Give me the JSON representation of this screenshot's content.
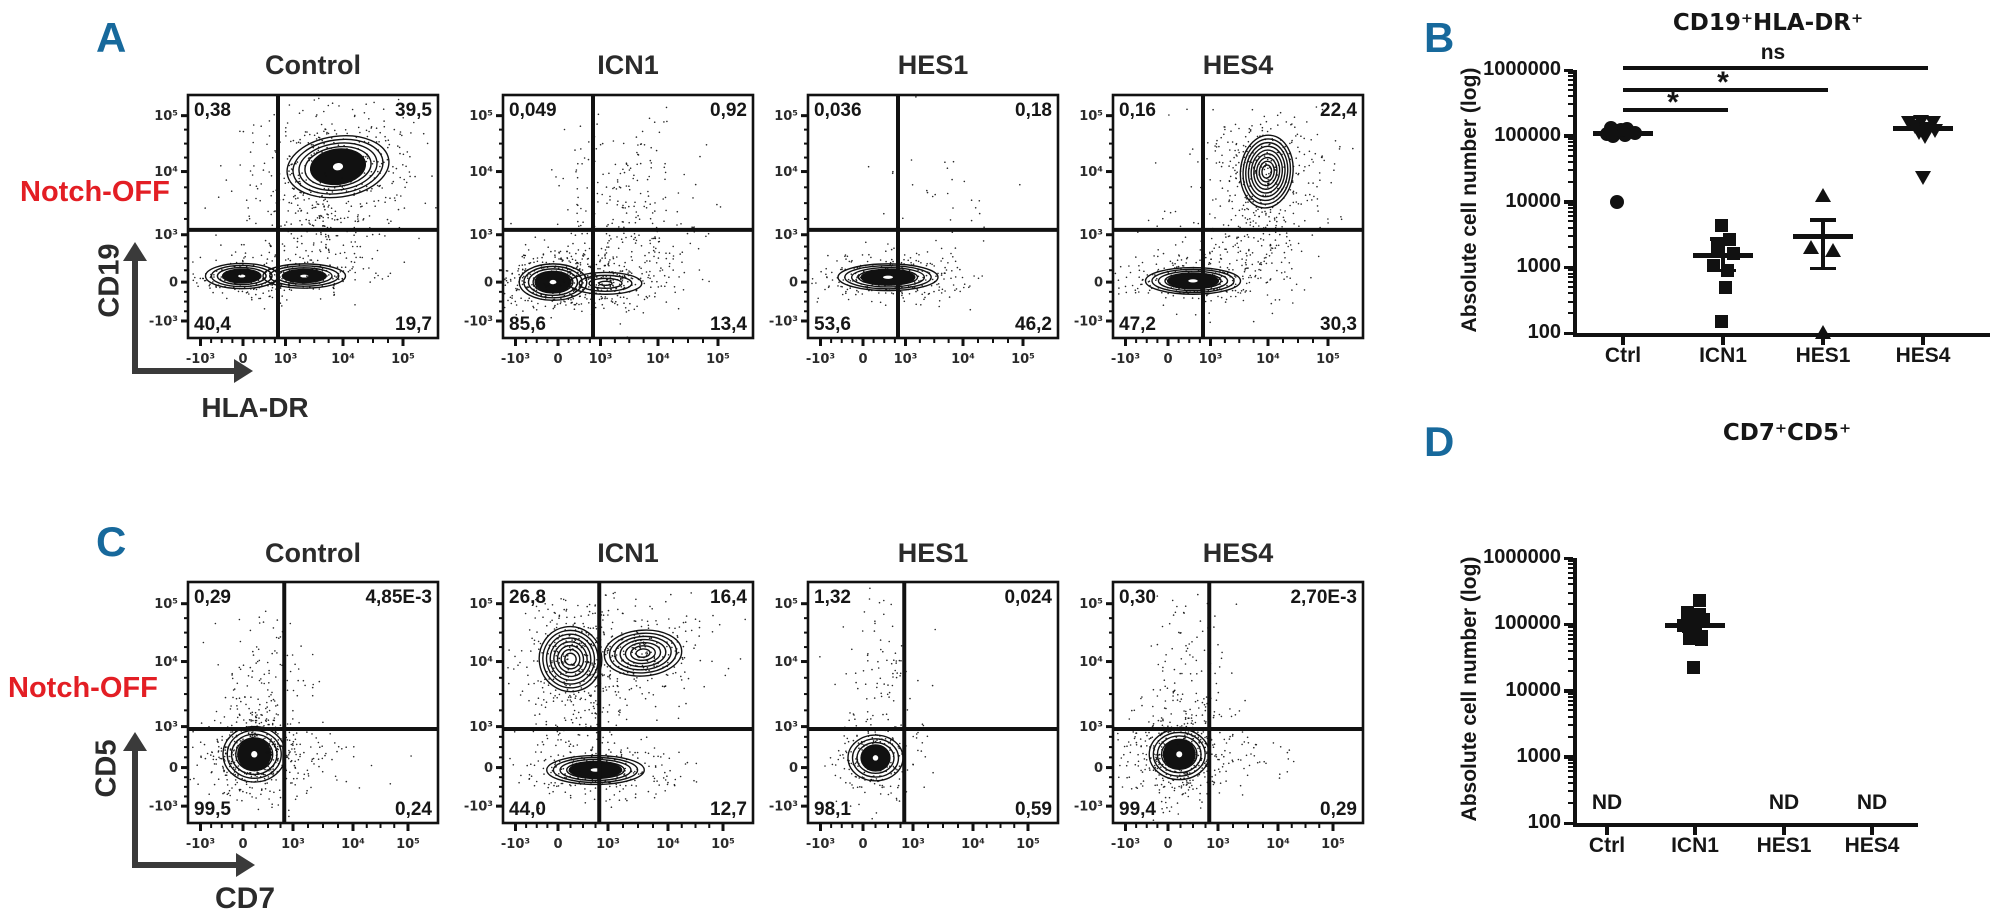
{
  "colors": {
    "panel_label": "#17699c",
    "notch": "#e31e24",
    "ink": "#111111"
  },
  "panels": {
    "a": {
      "label": "A",
      "notch": "Notch-OFF",
      "y_axis": "CD19",
      "x_axis": "HLA-DR"
    },
    "b": {
      "label": "B"
    },
    "c": {
      "label": "C",
      "notch": "Notch-OFF",
      "y_axis": "CD5",
      "x_axis": "CD7"
    },
    "d": {
      "label": "D"
    }
  },
  "chart_data": [
    {
      "type": "heatmap",
      "subtype": "flow-contour-grid",
      "panel": "A",
      "condition": "Notch-OFF",
      "xlabel": "HLA-DR",
      "ylabel": "CD19",
      "x_ticks": [
        "-10³",
        "0",
        "10³",
        "10⁴",
        "10⁵"
      ],
      "y_ticks": [
        "10⁵",
        "10⁴",
        "10³",
        "0",
        "-10³"
      ],
      "gate_x": 0.36,
      "gate_y": 0.555,
      "plots": [
        {
          "title": "Control",
          "quadrants": {
            "tl": "0,38",
            "tr": "39,5",
            "bl": "40,4",
            "br": "19,7"
          },
          "populations": [
            {
              "cx": 0.6,
              "cy": 0.295,
              "rx": 0.205,
              "ry": 0.125,
              "rot": -8,
              "levels": 8,
              "style": "dense",
              "scatter": [
                340,
                0.17,
                0.13
              ]
            },
            {
              "cx": 0.215,
              "cy": 0.745,
              "rx": 0.145,
              "ry": 0.052,
              "rot": 0,
              "levels": 6,
              "style": "dense",
              "scatter": [
                150,
                0.11,
                0.05
              ]
            },
            {
              "cx": 0.465,
              "cy": 0.745,
              "rx": 0.165,
              "ry": 0.05,
              "rot": 0,
              "levels": 6,
              "style": "dense",
              "scatter": [
                160,
                0.13,
                0.05
              ]
            },
            {
              "cx": 0.52,
              "cy": 0.52,
              "style": "speckle",
              "scatter": [
                220,
                0.16,
                0.14
              ]
            }
          ]
        },
        {
          "title": "ICN1",
          "quadrants": {
            "tl": "0,049",
            "tr": "0,92",
            "bl": "85,6",
            "br": "13,4"
          },
          "populations": [
            {
              "cx": 0.2,
              "cy": 0.77,
              "rx": 0.135,
              "ry": 0.075,
              "rot": 0,
              "levels": 7,
              "style": "dense",
              "scatter": [
                320,
                0.12,
                0.07
              ]
            },
            {
              "cx": 0.41,
              "cy": 0.775,
              "rx": 0.145,
              "ry": 0.045,
              "rot": 0,
              "levels": 4,
              "style": "rings",
              "scatter": [
                240,
                0.16,
                0.06
              ]
            },
            {
              "cx": 0.5,
              "cy": 0.38,
              "style": "speckle",
              "scatter": [
                150,
                0.13,
                0.16
              ]
            },
            {
              "cx": 0.55,
              "cy": 0.62,
              "style": "speckle",
              "scatter": [
                120,
                0.16,
                0.1
              ]
            }
          ]
        },
        {
          "title": "HES1",
          "quadrants": {
            "tl": "0,036",
            "tr": "0,18",
            "bl": "53,6",
            "br": "46,2"
          },
          "populations": [
            {
              "cx": 0.32,
              "cy": 0.75,
              "rx": 0.2,
              "ry": 0.055,
              "rot": 0,
              "levels": 7,
              "style": "dense",
              "scatter": [
                300,
                0.15,
                0.05
              ]
            },
            {
              "cx": 0.5,
              "cy": 0.48,
              "style": "speckle",
              "scatter": [
                40,
                0.14,
                0.16
              ]
            }
          ]
        },
        {
          "title": "HES4",
          "quadrants": {
            "tl": "0,16",
            "tr": "22,4",
            "bl": "47,2",
            "br": "30,3"
          },
          "populations": [
            {
              "cx": 0.615,
              "cy": 0.315,
              "rx": 0.105,
              "ry": 0.15,
              "rot": 6,
              "levels": 9,
              "style": "rings",
              "scatter": [
                300,
                0.13,
                0.14
              ]
            },
            {
              "cx": 0.32,
              "cy": 0.765,
              "rx": 0.19,
              "ry": 0.055,
              "rot": 0,
              "levels": 7,
              "style": "dense",
              "scatter": [
                240,
                0.15,
                0.05
              ]
            },
            {
              "cx": 0.6,
              "cy": 0.58,
              "style": "speckle",
              "scatter": [
                130,
                0.07,
                0.13
              ]
            },
            {
              "cx": 0.42,
              "cy": 0.6,
              "style": "speckle",
              "scatter": [
                80,
                0.18,
                0.1
              ]
            }
          ]
        }
      ]
    },
    {
      "type": "scatter",
      "panel": "B",
      "title": "CD19⁺HLA-DR⁺",
      "ylabel": "Absolute cell number (log)",
      "yscale": "log",
      "ylim": [
        100,
        1000000
      ],
      "yticks": [
        100,
        1000,
        10000,
        100000,
        1000000
      ],
      "categories": [
        "Ctrl",
        "ICN1",
        "HES1",
        "HES4"
      ],
      "groups": [
        {
          "name": "Ctrl",
          "marker": "circle",
          "mean": 110000,
          "points": [
            {
              "v": 108000,
              "dx": -16
            },
            {
              "v": 118000,
              "dx": -6
            },
            {
              "v": 126000,
              "dx": 4
            },
            {
              "v": 112000,
              "dx": 12
            },
            {
              "v": 98000,
              "dx": -10
            },
            {
              "v": 104000,
              "dx": 2
            },
            {
              "v": 122000,
              "dx": -2
            },
            {
              "v": 130000,
              "dx": -12
            },
            {
              "v": 10000,
              "dx": -6
            }
          ]
        },
        {
          "name": "ICN1",
          "marker": "square",
          "mean": 1500,
          "err_lo": 900,
          "err_hi": 2700,
          "points": [
            {
              "v": 4300,
              "dx": -2
            },
            {
              "v": 2600,
              "dx": 6
            },
            {
              "v": 2100,
              "dx": -6
            },
            {
              "v": 1600,
              "dx": 10
            },
            {
              "v": 1050,
              "dx": -10
            },
            {
              "v": 900,
              "dx": 4
            },
            {
              "v": 500,
              "dx": 2
            },
            {
              "v": 150,
              "dx": -2
            }
          ]
        },
        {
          "name": "HES1",
          "marker": "triangle-up",
          "mean": 2900,
          "err_lo": 950,
          "err_hi": 5200,
          "points": [
            {
              "v": 12500,
              "dx": 0
            },
            {
              "v": 2000,
              "dx": -12
            },
            {
              "v": 1800,
              "dx": 10
            },
            {
              "v": 105,
              "dx": 0
            }
          ]
        },
        {
          "name": "HES4",
          "marker": "triangle-down",
          "mean": 128000,
          "points": [
            {
              "v": 155000,
              "dx": -14
            },
            {
              "v": 162000,
              "dx": -2
            },
            {
              "v": 158000,
              "dx": 10
            },
            {
              "v": 135000,
              "dx": -8
            },
            {
              "v": 125000,
              "dx": 4
            },
            {
              "v": 112000,
              "dx": -4
            },
            {
              "v": 118000,
              "dx": 12
            },
            {
              "v": 95000,
              "dx": 2
            },
            {
              "v": 23000,
              "dx": 0
            }
          ]
        }
      ],
      "sig_bars": [
        {
          "label": "ns",
          "from": "Ctrl",
          "to": "HES4"
        },
        {
          "label": "*",
          "from": "Ctrl",
          "to": "HES1"
        },
        {
          "label": "*",
          "from": "Ctrl",
          "to": "ICN1"
        }
      ]
    },
    {
      "type": "heatmap",
      "subtype": "flow-contour-grid",
      "panel": "C",
      "condition": "Notch-OFF",
      "xlabel": "CD7",
      "ylabel": "CD5",
      "x_ticks": [
        "-10³",
        "0",
        "10³",
        "10⁴",
        "10⁵"
      ],
      "y_ticks": [
        "10⁵",
        "10⁴",
        "10³",
        "0",
        "-10³"
      ],
      "gate_x": 0.385,
      "gate_y": 0.61,
      "plots": [
        {
          "title": "Control",
          "quadrants": {
            "tl": "0,29",
            "tr": "4,85E-3",
            "bl": "99,5",
            "br": "0,24"
          },
          "populations": [
            {
              "cx": 0.265,
              "cy": 0.715,
              "rx": 0.125,
              "ry": 0.115,
              "rot": 0,
              "levels": 7,
              "style": "dense",
              "scatter": [
                520,
                0.1,
                0.095
              ]
            },
            {
              "cx": 0.3,
              "cy": 0.38,
              "style": "speckle",
              "scatter": [
                110,
                0.09,
                0.17
              ]
            },
            {
              "cx": 0.55,
              "cy": 0.72,
              "style": "speckle",
              "scatter": [
                40,
                0.12,
                0.06
              ]
            }
          ]
        },
        {
          "title": "ICN1",
          "quadrants": {
            "tl": "26,8",
            "tr": "16,4",
            "bl": "44,0",
            "br": "12,7"
          },
          "populations": [
            {
              "cx": 0.27,
              "cy": 0.32,
              "rx": 0.125,
              "ry": 0.135,
              "rot": -10,
              "levels": 8,
              "style": "rings",
              "scatter": [
                260,
                0.12,
                0.13
              ]
            },
            {
              "cx": 0.56,
              "cy": 0.295,
              "rx": 0.155,
              "ry": 0.095,
              "rot": -4,
              "levels": 7,
              "style": "rings",
              "scatter": [
                260,
                0.15,
                0.1
              ]
            },
            {
              "cx": 0.37,
              "cy": 0.78,
              "rx": 0.195,
              "ry": 0.06,
              "rot": 0,
              "levels": 7,
              "style": "dense",
              "scatter": [
                260,
                0.16,
                0.06
              ]
            },
            {
              "cx": 0.3,
              "cy": 0.55,
              "style": "speckle",
              "scatter": [
                140,
                0.1,
                0.14
              ]
            }
          ]
        },
        {
          "title": "HES1",
          "quadrants": {
            "tl": "1,32",
            "tr": "0,024",
            "bl": "98,1",
            "br": "0,59"
          },
          "populations": [
            {
              "cx": 0.27,
              "cy": 0.73,
              "rx": 0.11,
              "ry": 0.095,
              "rot": 0,
              "levels": 6,
              "style": "dense",
              "scatter": [
                240,
                0.085,
                0.08
              ]
            },
            {
              "cx": 0.3,
              "cy": 0.4,
              "style": "speckle",
              "scatter": [
                90,
                0.08,
                0.17
              ]
            }
          ]
        },
        {
          "title": "HES4",
          "quadrants": {
            "tl": "0,30",
            "tr": "2,70E-3",
            "bl": "99,4",
            "br": "0,29"
          },
          "populations": [
            {
              "cx": 0.265,
              "cy": 0.715,
              "rx": 0.12,
              "ry": 0.105,
              "rot": 0,
              "levels": 7,
              "style": "dense",
              "scatter": [
                480,
                0.1,
                0.095
              ]
            },
            {
              "cx": 0.3,
              "cy": 0.38,
              "style": "speckle",
              "scatter": [
                100,
                0.09,
                0.16
              ]
            },
            {
              "cx": 0.55,
              "cy": 0.73,
              "style": "speckle",
              "scatter": [
                35,
                0.1,
                0.05
              ]
            }
          ]
        }
      ]
    },
    {
      "type": "scatter",
      "panel": "D",
      "title": "CD7⁺CD5⁺",
      "ylabel": "Absolute cell number (log)",
      "yscale": "log",
      "ylim": [
        100,
        1000000
      ],
      "yticks": [
        100,
        1000,
        10000,
        100000,
        1000000
      ],
      "categories": [
        "Ctrl",
        "ICN1",
        "HES1",
        "HES4"
      ],
      "nd_label": "ND",
      "groups": [
        {
          "name": "Ctrl",
          "nd": true
        },
        {
          "name": "ICN1",
          "marker": "square",
          "mean": 97000,
          "err_lo": 78000,
          "err_hi": 120000,
          "points": [
            {
              "v": 230000,
              "dx": 4
            },
            {
              "v": 150000,
              "dx": -8
            },
            {
              "v": 140000,
              "dx": 4
            },
            {
              "v": 125000,
              "dx": -2
            },
            {
              "v": 118000,
              "dx": 8
            },
            {
              "v": 95000,
              "dx": -12
            },
            {
              "v": 80000,
              "dx": 0
            },
            {
              "v": 62000,
              "dx": -6
            },
            {
              "v": 58000,
              "dx": 6
            },
            {
              "v": 22000,
              "dx": -2
            }
          ]
        },
        {
          "name": "HES1",
          "nd": true
        },
        {
          "name": "HES4",
          "nd": true
        }
      ]
    }
  ]
}
